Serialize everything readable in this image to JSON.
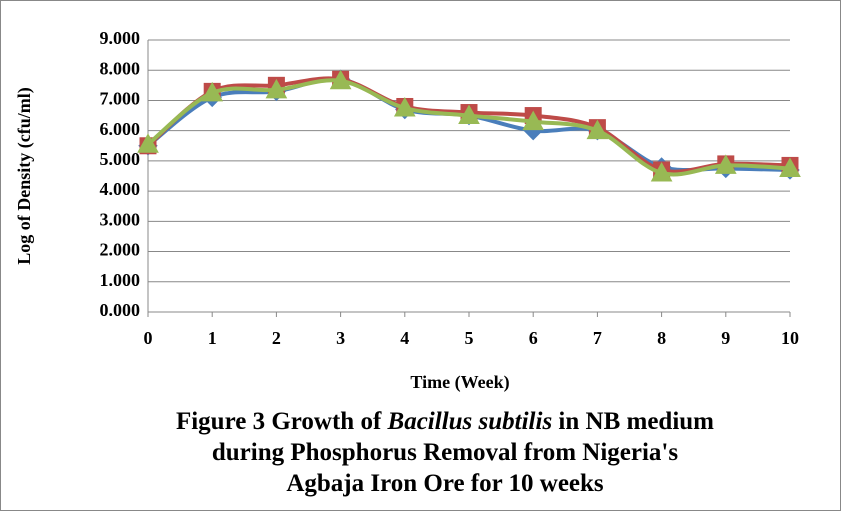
{
  "chart_data": {
    "type": "line",
    "title_parts": [
      "Figure 3 Growth of ",
      "Bacillus subtilis",
      "  in NB medium",
      "during Phosphorus Removal from Nigeria's",
      "Agbaja Iron Ore for 10 weeks"
    ],
    "x_label": "Time (Week)",
    "y_label": "Log of Density (cfu/ml)",
    "x": [
      0,
      1,
      2,
      3,
      4,
      5,
      6,
      7,
      8,
      9,
      10
    ],
    "xlim": [
      0,
      10
    ],
    "xticks": [
      0,
      1,
      2,
      3,
      4,
      5,
      6,
      7,
      8,
      9,
      10
    ],
    "ylim": [
      0,
      9
    ],
    "yticks": [
      {
        "value": 0,
        "label": "0.000"
      },
      {
        "value": 1,
        "label": "1.000"
      },
      {
        "value": 2,
        "label": "2.000"
      },
      {
        "value": 3,
        "label": "3.000"
      },
      {
        "value": 4,
        "label": "4.000"
      },
      {
        "value": 5,
        "label": "5.000"
      },
      {
        "value": 6,
        "label": "6.000"
      },
      {
        "value": 7,
        "label": "7.000"
      },
      {
        "value": 8,
        "label": "8.000"
      },
      {
        "value": 9,
        "label": "9.000"
      }
    ],
    "grid": true,
    "smooth": true,
    "series": [
      {
        "color": "#4a7ebb",
        "marker": "diamond",
        "values": [
          5.5,
          7.1,
          7.3,
          7.7,
          6.7,
          6.5,
          6.0,
          6.0,
          4.8,
          4.75,
          4.7
        ]
      },
      {
        "color": "#be4b48",
        "marker": "square",
        "values": [
          5.5,
          7.3,
          7.5,
          7.7,
          6.8,
          6.6,
          6.5,
          6.1,
          4.7,
          4.9,
          4.85
        ]
      },
      {
        "color": "#98b954",
        "marker": "triangle",
        "values": [
          5.55,
          7.25,
          7.35,
          7.65,
          6.75,
          6.5,
          6.3,
          6.0,
          4.6,
          4.85,
          4.75
        ]
      }
    ]
  }
}
